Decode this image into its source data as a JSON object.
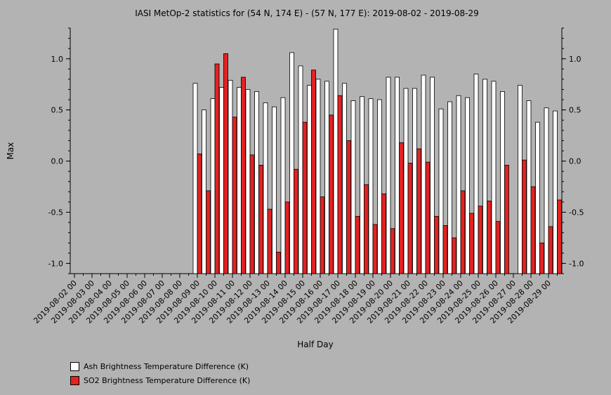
{
  "chart_data": {
    "type": "bar",
    "title": "IASI MetOp-2 statistics for (54 N, 174 E) - (57 N, 177 E): 2019-08-02 - 2019-08-29",
    "xlabel": "Half Day",
    "ylabel": "Max",
    "ylim": [
      -1.1,
      1.3
    ],
    "yticks": [
      -1.0,
      -0.5,
      0.0,
      0.5,
      1.0
    ],
    "ytick_labels": [
      "-1.0",
      "-0.5",
      "0.0",
      "0.5",
      "1.0"
    ],
    "grid": false,
    "legend_position": "bottom-left",
    "date_labels": [
      "2019-08-02 00",
      "2019-08-03 00",
      "2019-08-04 00",
      "2019-08-05 00",
      "2019-08-06 00",
      "2019-08-07 00",
      "2019-08-08 00",
      "2019-08-09 00",
      "2019-08-10 00",
      "2019-08-11 00",
      "2019-08-12 00",
      "2019-08-13 00",
      "2019-08-14 00",
      "2019-08-15 00",
      "2019-08-16 00",
      "2019-08-17 00",
      "2019-08-18 00",
      "2019-08-19 00",
      "2019-08-20 00",
      "2019-08-21 00",
      "2019-08-22 00",
      "2019-08-23 00",
      "2019-08-24 00",
      "2019-08-25 00",
      "2019-08-26 00",
      "2019-08-27 00",
      "2019-08-28 00",
      "2019-08-29 00"
    ],
    "categories": [
      "2019-08-02 00",
      "2019-08-02 12",
      "2019-08-03 00",
      "2019-08-03 12",
      "2019-08-04 00",
      "2019-08-04 12",
      "2019-08-05 00",
      "2019-08-05 12",
      "2019-08-06 00",
      "2019-08-06 12",
      "2019-08-07 00",
      "2019-08-07 12",
      "2019-08-08 00",
      "2019-08-08 12",
      "2019-08-09 00",
      "2019-08-09 12",
      "2019-08-10 00",
      "2019-08-10 12",
      "2019-08-11 00",
      "2019-08-11 12",
      "2019-08-12 00",
      "2019-08-12 12",
      "2019-08-13 00",
      "2019-08-13 12",
      "2019-08-14 00",
      "2019-08-14 12",
      "2019-08-15 00",
      "2019-08-15 12",
      "2019-08-16 00",
      "2019-08-16 12",
      "2019-08-17 00",
      "2019-08-17 12",
      "2019-08-18 00",
      "2019-08-18 12",
      "2019-08-19 00",
      "2019-08-19 12",
      "2019-08-20 00",
      "2019-08-20 12",
      "2019-08-21 00",
      "2019-08-21 12",
      "2019-08-22 00",
      "2019-08-22 12",
      "2019-08-23 00",
      "2019-08-23 12",
      "2019-08-24 00",
      "2019-08-24 12",
      "2019-08-25 00",
      "2019-08-25 12",
      "2019-08-26 00",
      "2019-08-26 12",
      "2019-08-27 00",
      "2019-08-27 12",
      "2019-08-28 00",
      "2019-08-28 12",
      "2019-08-29 00",
      "2019-08-29 12"
    ],
    "series": [
      {
        "name": "Ash Brightness Temperature Difference (K)",
        "color": "#ffffff",
        "values": [
          null,
          null,
          null,
          null,
          null,
          null,
          null,
          null,
          null,
          null,
          null,
          null,
          null,
          null,
          0.76,
          0.5,
          0.61,
          0.72,
          0.79,
          0.72,
          0.7,
          0.68,
          0.57,
          0.53,
          0.62,
          1.06,
          0.93,
          0.74,
          0.8,
          0.78,
          1.29,
          0.76,
          0.59,
          0.63,
          0.61,
          0.6,
          0.82,
          0.82,
          0.71,
          0.71,
          0.84,
          0.82,
          0.51,
          0.58,
          0.64,
          0.62,
          0.85,
          0.8,
          0.78,
          0.68,
          null,
          0.74,
          0.59,
          0.38,
          0.52,
          0.49
        ]
      },
      {
        "name": "SO2 Brightness Temperature Difference (K)",
        "color": "#e32222",
        "values": [
          null,
          null,
          null,
          null,
          null,
          null,
          null,
          null,
          null,
          null,
          null,
          null,
          null,
          null,
          0.07,
          -0.29,
          0.95,
          1.05,
          0.43,
          0.82,
          0.06,
          -0.04,
          -0.47,
          -0.89,
          -0.4,
          -0.08,
          0.38,
          0.89,
          -0.35,
          0.45,
          0.64,
          0.2,
          -0.54,
          -0.23,
          -0.62,
          -0.32,
          -0.66,
          0.18,
          -0.02,
          0.12,
          -0.01,
          -0.54,
          -0.63,
          -0.75,
          -0.29,
          -0.51,
          -0.44,
          -0.39,
          -0.59,
          -0.04,
          null,
          0.01,
          -0.25,
          -0.8,
          -0.64,
          -0.38
        ]
      }
    ]
  }
}
